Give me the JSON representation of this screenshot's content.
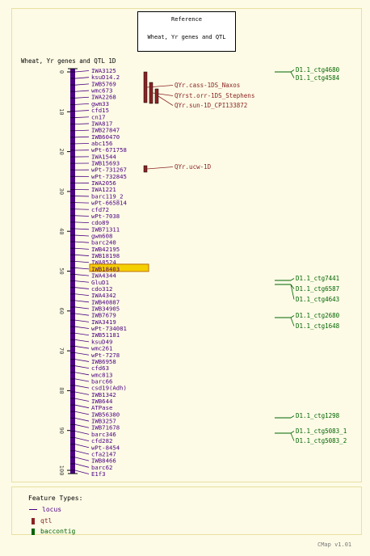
{
  "reference": {
    "label": "Reference",
    "title": "Wheat, Yr genes and QTL"
  },
  "map": {
    "title": "Wheat, Yr genes and QTL 1D",
    "axis": {
      "min": 0,
      "max": 100,
      "ticks": [
        0,
        10,
        20,
        30,
        40,
        50,
        60,
        70,
        80,
        90,
        100
      ]
    },
    "loci": [
      "IWA3125",
      "ksuD14.2",
      "IWB5769",
      "wmc673",
      "IWA2268",
      "gwm33",
      "cfd15",
      "cn17",
      "IWA817",
      "IWB27847",
      "IWB60470",
      "abc156",
      "wPt-671758",
      "IWA1544",
      "IWB15693",
      "wPt-731267",
      "wPt-732845",
      "IWA2056",
      "IWA1221",
      "barc119_2",
      "wPt-665814",
      "cfd72",
      "wPt-7038",
      "cdo89",
      "IWB71311",
      "gwm608",
      "barc240",
      "IWB42195",
      "IWB18198",
      "IWA8524",
      "IWB18403",
      "IWA4344",
      "GluD1",
      "cdo312",
      "IWA4342",
      "IWB40887",
      "IWB34905",
      "IWB7679",
      "IWA3419",
      "wPt-734081",
      "IWB51181",
      "ksuD49",
      "wmc261",
      "wPt-7278",
      "IWB6958",
      "cfd63",
      "wmc813",
      "barc66",
      "csd19(Adh)",
      "IWB1342",
      "IWB644",
      "ATPase",
      "IWB56380",
      "IWB3257",
      "IWB71678",
      "barc346",
      "cfd282",
      "wPt-8454",
      "cfa2147",
      "IWB8466",
      "barc62",
      "E1f3"
    ],
    "highlighted": "IWB18403",
    "qtl": [
      {
        "label": "QYr.cass-1DS_Naxos"
      },
      {
        "label": "QYrst.orr-1DS_Stephens"
      },
      {
        "label": "QYr.sun-1D_CPI133872"
      },
      {
        "label": "QYr.ucw-1D"
      }
    ],
    "contigs": [
      {
        "label": "D1.1_ctg4680"
      },
      {
        "label": "D1.1_ctg4584"
      },
      {
        "label": "D1.1_ctg7441"
      },
      {
        "label": "D1.1_ctg6587"
      },
      {
        "label": "D1.1_ctg4643"
      },
      {
        "label": "D1.1_ctg2680"
      },
      {
        "label": "D1.1_ctg1648"
      },
      {
        "label": "D1.1_ctg1298"
      },
      {
        "label": "D1.1_ctg5083_1"
      },
      {
        "label": "D1.1_ctg5083_2"
      }
    ]
  },
  "legend": {
    "title": "Feature Types:",
    "items": [
      {
        "label": "locus",
        "color": "#4b0082"
      },
      {
        "label": "qtl",
        "color": "#8b2323"
      },
      {
        "label": "baccontig",
        "color": "#006400"
      }
    ]
  },
  "footer": {
    "version": "CMap v1.01"
  },
  "colors": {
    "locus": "#4b0082",
    "qtl": "#8b2323",
    "contig": "#006400",
    "highlight": "#f5d000"
  }
}
